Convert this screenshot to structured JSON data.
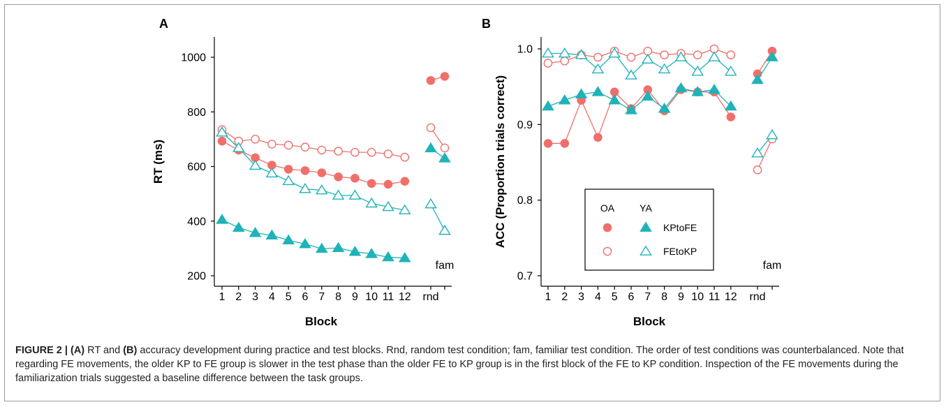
{
  "colors": {
    "OA": "#ef706a",
    "YA": "#1fb3b9"
  },
  "legend": {
    "group_headers": [
      "OA",
      "YA"
    ],
    "rows": [
      {
        "label": "KPtoFE",
        "OA_marker": "filled-circle",
        "YA_marker": "filled-triangle"
      },
      {
        "label": "FEtoKP",
        "OA_marker": "open-circle",
        "YA_marker": "open-triangle"
      }
    ]
  },
  "chart_data": [
    {
      "panel": "A",
      "type": "line",
      "ylabel": "RT (ms)",
      "xlabel": "Block",
      "ylim": [
        180,
        1040
      ],
      "yticks": [
        200,
        400,
        600,
        800,
        1000
      ],
      "blocks": [
        "1",
        "2",
        "3",
        "4",
        "5",
        "6",
        "7",
        "8",
        "9",
        "10",
        "11",
        "12"
      ],
      "test_labels": [
        "rnd",
        "fam"
      ],
      "grid": false,
      "series": [
        {
          "group": "OA",
          "condition": "KPtoFE",
          "filled": true,
          "values": [
            693,
            660,
            632,
            605,
            590,
            585,
            577,
            562,
            557,
            538,
            535,
            546
          ],
          "test": [
            915,
            930
          ]
        },
        {
          "group": "OA",
          "condition": "FEtoKP",
          "filled": false,
          "values": [
            735,
            693,
            700,
            682,
            678,
            671,
            660,
            656,
            652,
            652,
            646,
            634
          ],
          "test": [
            742,
            668
          ]
        },
        {
          "group": "YA",
          "condition": "KPtoFE",
          "filled": true,
          "values": [
            405,
            376,
            357,
            348,
            330,
            316,
            299,
            302,
            288,
            280,
            268,
            265
          ],
          "test": [
            667,
            630
          ]
        },
        {
          "group": "YA",
          "condition": "FEtoKP",
          "filled": false,
          "values": [
            725,
            668,
            603,
            575,
            547,
            518,
            513,
            494,
            494,
            465,
            452,
            440
          ],
          "test": [
            462,
            365
          ]
        }
      ]
    },
    {
      "panel": "B",
      "type": "line",
      "ylabel": "ACC (Proportion trials correct)",
      "xlabel": "Block",
      "ylim": [
        0.69,
        1.005
      ],
      "yticks": [
        "0.7",
        "0.8",
        "0.9",
        "1.0"
      ],
      "blocks": [
        "1",
        "2",
        "3",
        "4",
        "5",
        "6",
        "7",
        "8",
        "9",
        "10",
        "11",
        "12"
      ],
      "test_labels": [
        "rnd",
        "fam"
      ],
      "grid": false,
      "legend_position": "lower-center",
      "series": [
        {
          "group": "OA",
          "condition": "KPtoFE",
          "filled": true,
          "values": [
            0.875,
            0.875,
            0.932,
            0.883,
            0.943,
            0.921,
            0.946,
            0.918,
            0.946,
            0.943,
            0.943,
            0.91
          ],
          "test": [
            0.967,
            0.997
          ]
        },
        {
          "group": "OA",
          "condition": "FEtoKP",
          "filled": false,
          "values": [
            0.981,
            0.984,
            0.992,
            0.989,
            0.997,
            0.989,
            0.997,
            0.992,
            0.994,
            0.992,
            1.0,
            0.992
          ],
          "test": [
            0.84,
            0.881
          ]
        },
        {
          "group": "YA",
          "condition": "KPtoFE",
          "filled": true,
          "values": [
            0.924,
            0.932,
            0.94,
            0.943,
            0.932,
            0.919,
            0.937,
            0.921,
            0.948,
            0.943,
            0.946,
            0.924
          ],
          "test": [
            0.959,
            0.989
          ]
        },
        {
          "group": "YA",
          "condition": "FEtoKP",
          "filled": false,
          "values": [
            0.994,
            0.994,
            0.992,
            0.973,
            0.994,
            0.965,
            0.986,
            0.973,
            0.989,
            0.97,
            0.989,
            0.97
          ],
          "test": [
            0.862,
            0.886
          ]
        }
      ]
    }
  ],
  "caption": {
    "lead": "FIGURE 2 | (A)",
    "text_1": " RT and ",
    "b_label": "(B)",
    "text_2": " accuracy development during practice and test blocks. Rnd, random test condition; fam, familiar test condition. The order of test conditions was counterbalanced. Note that regarding FE movements, the older KP to FE group is slower in the test phase than the older FE to KP group is in the first block of the FE to KP condition. Inspection of the FE movements during the familiarization trials suggested a baseline difference between the task groups."
  }
}
